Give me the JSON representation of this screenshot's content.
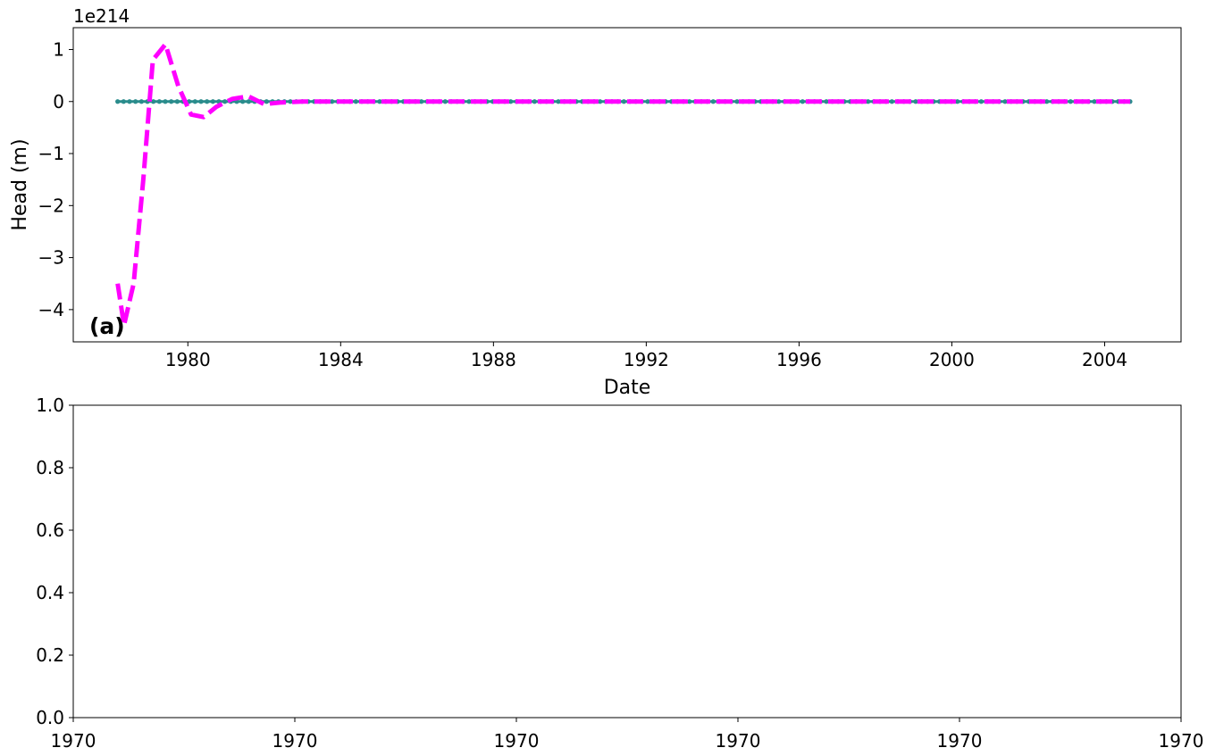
{
  "chart_data": [
    {
      "type": "line",
      "panel_label": "(a)",
      "title": "",
      "xlabel": "Date",
      "ylabel": "Head (m)",
      "y_offset_label": "1e214",
      "xlim": [
        "1977-01-01",
        "2006-01-01"
      ],
      "ylim": [
        -4.62,
        1.42
      ],
      "x_ticks": [
        "1980",
        "1984",
        "1988",
        "1992",
        "1996",
        "2000",
        "2004"
      ],
      "y_ticks": [
        {
          "value": 1,
          "label": "1"
        },
        {
          "value": 0,
          "label": "0"
        },
        {
          "value": -1,
          "label": "−1"
        },
        {
          "value": -2,
          "label": "−2"
        },
        {
          "value": -3,
          "label": "−3"
        },
        {
          "value": -4,
          "label": "−4"
        }
      ],
      "grid": false,
      "series": [
        {
          "color": "#ff00ff",
          "style": "dashed",
          "x": [
            "1978-03-01",
            "1978-05-01",
            "1978-08-01",
            "1978-11-01",
            "1979-02-01",
            "1979-06-01",
            "1979-10-01",
            "1980-02-01",
            "1980-06-01",
            "1980-10-01",
            "1981-03-01",
            "1981-08-01",
            "1982-01-01",
            "1982-06-01",
            "1983-01-01",
            "1984-01-01",
            "1986-01-01",
            "1990-01-01",
            "1995-01-01",
            "2000-01-01",
            "2004-09-01"
          ],
          "y": [
            -3.5,
            -4.3,
            -3.5,
            -1.5,
            0.8,
            1.1,
            0.3,
            -0.25,
            -0.3,
            -0.1,
            0.05,
            0.1,
            -0.05,
            -0.02,
            0.0,
            0.0,
            0.0,
            0.0,
            0.0,
            0.0,
            0.0
          ]
        },
        {
          "color": "#2a8c8c",
          "style": "markers",
          "x_range": [
            "1978-03-01",
            "2004-09-01"
          ],
          "value": 0.0
        }
      ]
    },
    {
      "type": "line",
      "title": "",
      "xlabel": "",
      "ylabel": "",
      "xlim": [
        0,
        1
      ],
      "ylim": [
        0,
        1
      ],
      "x_ticks": [
        "1970",
        "1970",
        "1970",
        "1970",
        "1970",
        "1970"
      ],
      "y_ticks": [
        {
          "value": 0.0,
          "label": "0.0"
        },
        {
          "value": 0.2,
          "label": "0.2"
        },
        {
          "value": 0.4,
          "label": "0.4"
        },
        {
          "value": 0.6,
          "label": "0.6"
        },
        {
          "value": 0.8,
          "label": "0.8"
        },
        {
          "value": 1.0,
          "label": "1.0"
        }
      ],
      "grid": false,
      "series": []
    }
  ]
}
